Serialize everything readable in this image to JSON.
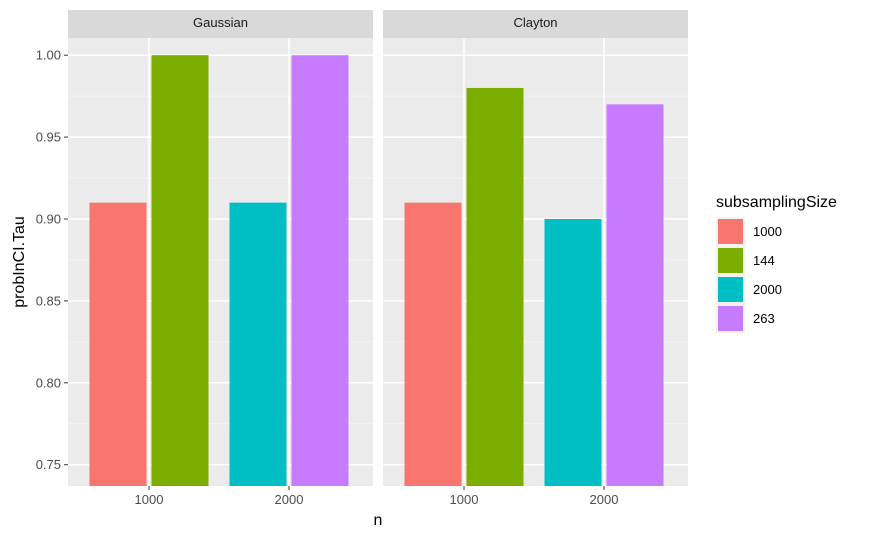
{
  "chart_data": {
    "type": "bar",
    "facets": [
      "Gaussian",
      "Clayton"
    ],
    "categories": [
      "1000",
      "2000"
    ],
    "xlabel": "n",
    "ylabel": "probInCI.Tau",
    "ylim": [
      0.737,
      1.0105
    ],
    "yticks": [
      0.75,
      0.8,
      0.85,
      0.9,
      0.95,
      1.0
    ],
    "ytick_labels": [
      "0.75",
      "0.80",
      "0.85",
      "0.90",
      "0.95",
      "1.00"
    ],
    "grid": true,
    "legend": {
      "title": "subsamplingSize",
      "position": "right",
      "entries": [
        {
          "label": "1000",
          "color": "#F8766D"
        },
        {
          "label": "144",
          "color": "#7CAE00"
        },
        {
          "label": "2000",
          "color": "#00BFC4"
        },
        {
          "label": "263",
          "color": "#C77CFF"
        }
      ]
    },
    "bars": [
      {
        "facet": "Gaussian",
        "n": "1000",
        "subsamplingSize": "1000",
        "value": 0.91
      },
      {
        "facet": "Gaussian",
        "n": "1000",
        "subsamplingSize": "144",
        "value": 1.0
      },
      {
        "facet": "Gaussian",
        "n": "2000",
        "subsamplingSize": "2000",
        "value": 0.91
      },
      {
        "facet": "Gaussian",
        "n": "2000",
        "subsamplingSize": "263",
        "value": 1.0
      },
      {
        "facet": "Clayton",
        "n": "1000",
        "subsamplingSize": "1000",
        "value": 0.91
      },
      {
        "facet": "Clayton",
        "n": "1000",
        "subsamplingSize": "144",
        "value": 0.98
      },
      {
        "facet": "Clayton",
        "n": "2000",
        "subsamplingSize": "2000",
        "value": 0.9
      },
      {
        "facet": "Clayton",
        "n": "2000",
        "subsamplingSize": "263",
        "value": 0.97
      }
    ],
    "colors": {
      "panel_bg": "#EBEBEB",
      "strip_bg": "#D9D9D9",
      "grid_major": "#FFFFFF",
      "grid_minor": "#F4F4F4"
    }
  }
}
